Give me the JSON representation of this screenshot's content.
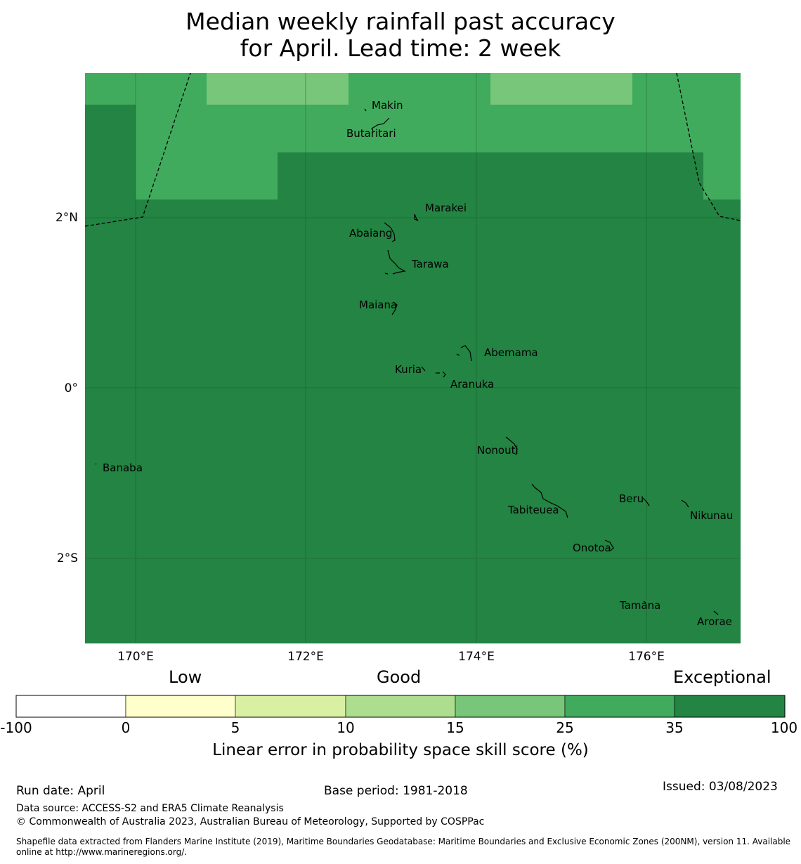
{
  "title": {
    "line1": "Median weekly rainfall past accuracy",
    "line2": "for April. Lead time: 2 week"
  },
  "colors": {
    "exceptional": "#238443",
    "very_good": "#41ab5d",
    "good_plus": "#78c679",
    "good": "#addd8e",
    "fair": "#d9f0a3",
    "low": "#ffffcc",
    "none": "#ffffff"
  },
  "map": {
    "lon_labels": [
      "170°E",
      "172°E",
      "174°E",
      "176°E"
    ],
    "lat_labels": [
      "2°N",
      "0°",
      "2°S"
    ],
    "islands": [
      {
        "name": "Makin"
      },
      {
        "name": "Butaritari"
      },
      {
        "name": "Marakei"
      },
      {
        "name": "Abaiang"
      },
      {
        "name": "Tarawa"
      },
      {
        "name": "Maiana"
      },
      {
        "name": "Abemama"
      },
      {
        "name": "Kuria"
      },
      {
        "name": "Aranuka"
      },
      {
        "name": "Nonouti"
      },
      {
        "name": "Banaba"
      },
      {
        "name": "Beru"
      },
      {
        "name": "Tabiteuea"
      },
      {
        "name": "Nikunau"
      },
      {
        "name": "Onotoa"
      },
      {
        "name": "Tamana"
      },
      {
        "name": "Arorae"
      }
    ]
  },
  "legend": {
    "category_labels": [
      "Low",
      "Good",
      "Exceptional"
    ],
    "ticks": [
      "-100",
      "0",
      "5",
      "10",
      "15",
      "25",
      "35",
      "100"
    ],
    "segment_colors": [
      "#ffffff",
      "#ffffcc",
      "#d9f0a3",
      "#addd8e",
      "#78c679",
      "#41ab5d",
      "#238443"
    ],
    "title": "Linear error in probability space skill score (%)"
  },
  "footer": {
    "run_date": "Run date: April",
    "base_period": "Base period: 1981-2018",
    "issued": "Issued: 03/08/2023",
    "data_source": "Data source: ACCESS-S2 and ERA5 Climate Reanalysis",
    "copyright": "© Commonwealth of Australia 2023, Australian Bureau of Meteorology, Supported by COSPPac",
    "shapefile": "Shapefile data extracted from Flanders Marine Institute (2019), Maritime Boundaries Geodatabase: Maritime Boundaries and Exclusive Economic Zones (200NM), version 11. Available online at http://www.marineregions.org/."
  }
}
